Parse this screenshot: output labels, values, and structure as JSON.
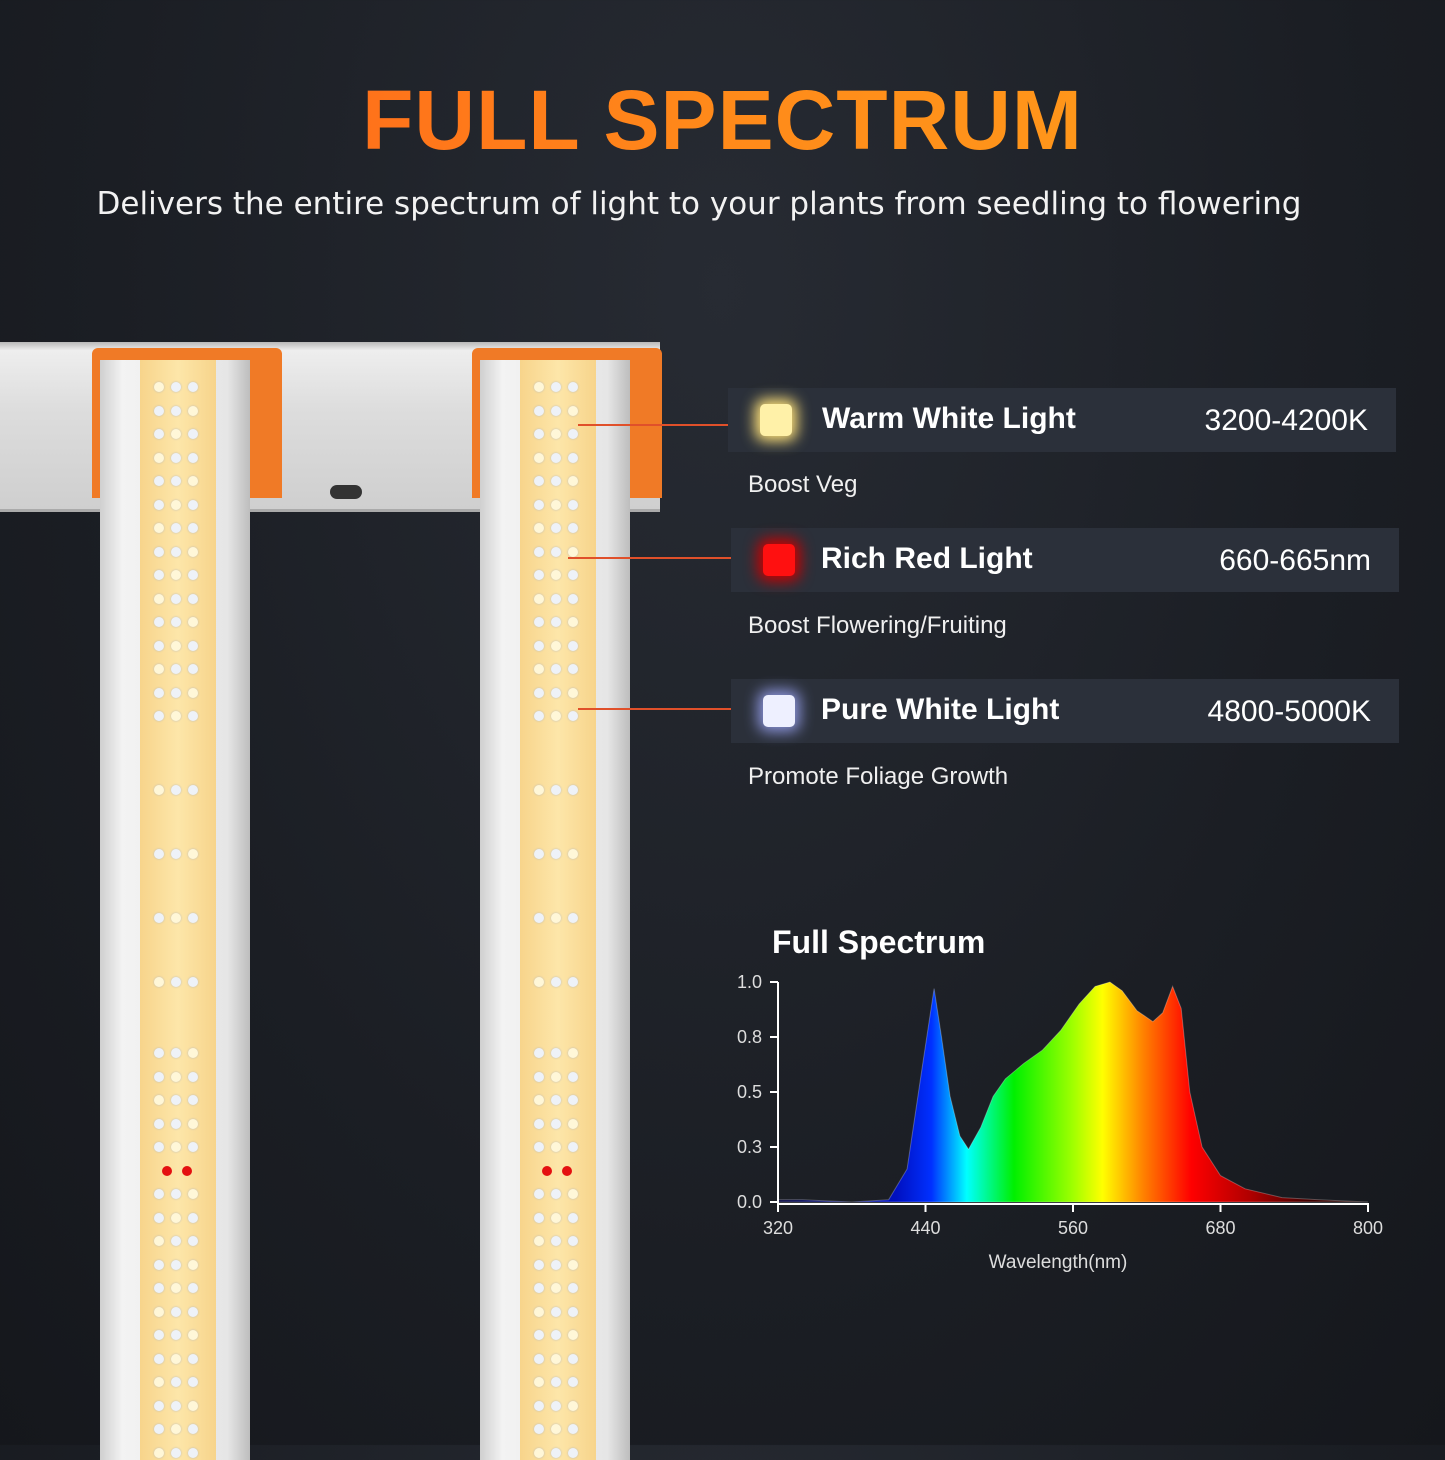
{
  "header": {
    "title": "FULL SPECTRUM",
    "subtitle": "Delivers the entire spectrum of light to your plants from seedling to flowering"
  },
  "lights": [
    {
      "name": "Warm White Light",
      "range": "3200-4200K",
      "benefit": "Boost Veg",
      "color": "#fff1a8"
    },
    {
      "name": "Rich Red Light",
      "range": "660-665nm",
      "benefit": "Boost Flowering/Fruiting",
      "color": "#ff1010"
    },
    {
      "name": "Pure White Light",
      "range": "4800-5000K",
      "benefit": "Promote Foliage Growth",
      "color": "#eef0ff"
    }
  ],
  "colors": {
    "accent": "#f07a26",
    "title_orange": "#ff6a1a",
    "leader_line": "#e0502a"
  },
  "chart_data": {
    "type": "area",
    "title": "Full Spectrum",
    "xlabel": "Wavelength(nm)",
    "ylabel": "",
    "xlim": [
      320,
      800
    ],
    "ylim": [
      0,
      1.0
    ],
    "x_ticks": [
      "320",
      "440",
      "560",
      "680",
      "800"
    ],
    "y_ticks": [
      "0.0",
      "0.3",
      "0.5",
      "0.8",
      "1.0"
    ],
    "grid": false,
    "x": [
      320,
      340,
      380,
      410,
      425,
      437,
      447,
      453,
      460,
      468,
      475,
      485,
      495,
      505,
      520,
      535,
      550,
      565,
      578,
      590,
      600,
      612,
      625,
      633,
      641,
      648,
      655,
      665,
      680,
      700,
      730,
      760,
      800
    ],
    "values": [
      0.01,
      0.01,
      0.0,
      0.01,
      0.15,
      0.6,
      0.97,
      0.75,
      0.48,
      0.3,
      0.24,
      0.34,
      0.48,
      0.56,
      0.63,
      0.69,
      0.78,
      0.9,
      0.98,
      1.0,
      0.96,
      0.87,
      0.82,
      0.86,
      0.98,
      0.88,
      0.5,
      0.25,
      0.12,
      0.06,
      0.02,
      0.01,
      0.0
    ]
  }
}
